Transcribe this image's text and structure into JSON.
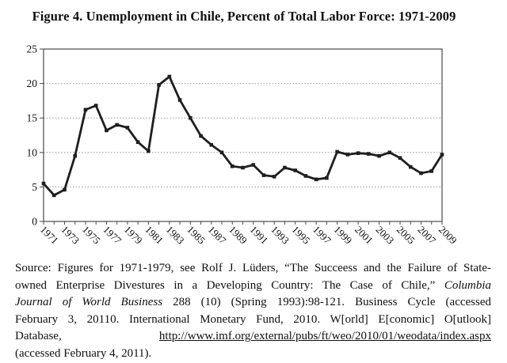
{
  "title": "Figure 4. Unemployment in Chile, Percent of Total Labor Force: 1971-2009",
  "chart_data": {
    "type": "line",
    "title": "Figure 4. Unemployment in Chile, Percent of Total Labor Force: 1971-2009",
    "x": [
      1971,
      1972,
      1973,
      1974,
      1975,
      1976,
      1977,
      1978,
      1979,
      1980,
      1981,
      1982,
      1983,
      1984,
      1985,
      1986,
      1987,
      1988,
      1989,
      1990,
      1991,
      1992,
      1993,
      1994,
      1995,
      1996,
      1997,
      1998,
      1999,
      2000,
      2001,
      2002,
      2003,
      2004,
      2005,
      2006,
      2007,
      2008,
      2009
    ],
    "values": [
      5.5,
      3.8,
      4.6,
      9.5,
      16.2,
      16.8,
      13.2,
      14.0,
      13.6,
      11.5,
      10.2,
      19.8,
      21.0,
      17.6,
      15.0,
      12.4,
      11.1,
      10.0,
      8.0,
      7.8,
      8.2,
      6.7,
      6.5,
      7.8,
      7.4,
      6.6,
      6.1,
      6.3,
      10.1,
      9.7,
      9.9,
      9.8,
      9.5,
      10.0,
      9.2,
      7.9,
      7.0,
      7.3,
      9.7
    ],
    "xlabel": "",
    "ylabel": "",
    "ylim": [
      0,
      25
    ],
    "yticks": [
      0,
      5,
      10,
      15,
      20,
      25
    ],
    "xtick_labels": [
      "1971",
      "1973",
      "1975",
      "1977",
      "1979",
      "1981",
      "1983",
      "1985",
      "1987",
      "1989",
      "1991",
      "1993",
      "1995",
      "1997",
      "1999",
      "2001",
      "2003",
      "2005",
      "2007",
      "2009"
    ],
    "grid": "horizontal-dotted",
    "legend": "none",
    "marker": "square",
    "line_color": "#1e1e1e"
  },
  "source": {
    "lines": [
      {
        "justify": true,
        "runs": [
          {
            "text": "Source: Figures for 1971-1979, see Rolf J. Lüders, “The Succeess and the Failure of State-"
          }
        ]
      },
      {
        "justify": true,
        "runs": [
          {
            "text": "owned Enterprise Divestures in a Developing Country: The Case of Chile,” "
          },
          {
            "text": "Columbia",
            "italic": true
          }
        ]
      },
      {
        "justify": true,
        "runs": [
          {
            "text": "Journal of World Business",
            "italic": true
          },
          {
            "text": " 288 (10) (Spring 1993):98-121. Business Cycle (accessed"
          }
        ]
      },
      {
        "justify": true,
        "runs": [
          {
            "text": "February 3, 20110. International Monetary Fund, 2010. W[orld] E[conomic] O[utlook]"
          }
        ]
      },
      {
        "justify": true,
        "runs": [
          {
            "text": "Database, "
          },
          {
            "text": "http://www.imf.org/external/pubs/ft/weo/2010/01/weodata/index.aspx",
            "underline": true
          }
        ]
      },
      {
        "justify": false,
        "runs": [
          {
            "text": "(accessed February 4, 2011)."
          }
        ]
      }
    ]
  },
  "colors": {
    "line": "#1e1e1e",
    "gridline": "#989898",
    "axis": "#4a4a4a",
    "text": "#0f0f0f",
    "background": "#ffffff"
  }
}
